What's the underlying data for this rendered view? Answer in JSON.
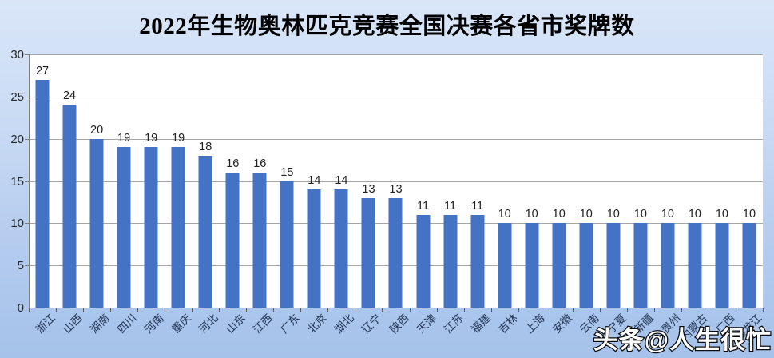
{
  "chart_data": {
    "type": "bar",
    "title": "2022年生物奥林匹克竞赛全国决赛各省市奖牌数",
    "categories": [
      "浙江",
      "山西",
      "湖南",
      "四川",
      "河南",
      "重庆",
      "河北",
      "山东",
      "江西",
      "广东",
      "北京",
      "湖北",
      "辽宁",
      "陕西",
      "天津",
      "江苏",
      "福建",
      "吉林",
      "上海",
      "安徽",
      "云南",
      "宁夏",
      "新疆",
      "贵州",
      "内蒙古",
      "广西",
      "黑龙江"
    ],
    "values": [
      27,
      24,
      20,
      19,
      19,
      19,
      18,
      16,
      16,
      15,
      14,
      14,
      13,
      13,
      11,
      11,
      11,
      10,
      10,
      10,
      10,
      10,
      10,
      10,
      10,
      10,
      10
    ],
    "xlabel": "",
    "ylabel": "",
    "ylim": [
      0,
      30
    ],
    "yticks": [
      0,
      5,
      10,
      15,
      20,
      25,
      30
    ],
    "grid": true,
    "legend": false,
    "data_labels": true,
    "bar_color": "#4472C4",
    "gridline_color": "#a6a6a6",
    "plot_bg": "#ffffff",
    "background_top": "#dae6f8",
    "background_bottom": "#a5c2ea"
  },
  "watermark": {
    "text": "头条@人生很忙",
    "fill_color": "#ffffff",
    "outline_color": "#0a0a0a"
  }
}
